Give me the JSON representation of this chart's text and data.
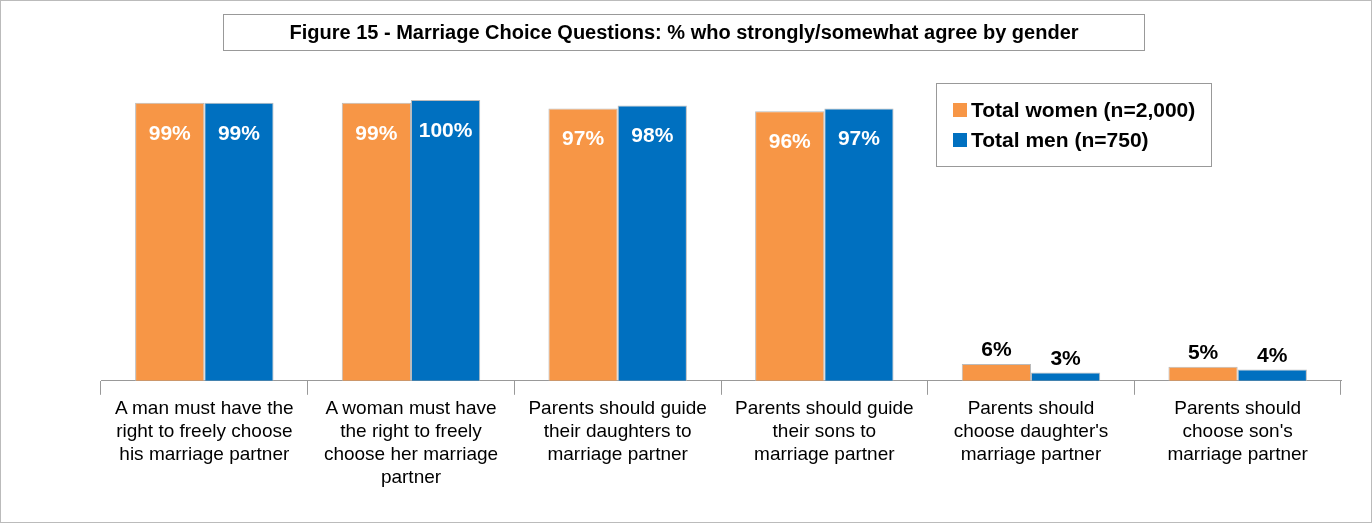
{
  "chart_data": {
    "type": "bar",
    "title": "Figure 15 - Marriage Choice Questions: % who strongly/somewhat agree by gender",
    "categories": [
      "A man must have the right to freely choose his marriage partner",
      "A woman must have the right to freely choose her marriage partner",
      "Parents should guide their daughters to marriage partner",
      "Parents should guide their sons to marriage partner",
      "Parents should choose daughter's marriage partner",
      "Parents should choose son's marriage partner"
    ],
    "series": [
      {
        "name": "Total women (n=2,000)",
        "color": "#f79646",
        "values": [
          99,
          99,
          97,
          96,
          6,
          5
        ],
        "value_labels": [
          "99%",
          "99%",
          "97%",
          "96%",
          "6%",
          "5%"
        ]
      },
      {
        "name": "Total men (n=750)",
        "color": "#0070c0",
        "values": [
          99,
          100,
          98,
          97,
          3,
          4
        ],
        "value_labels": [
          "99%",
          "100%",
          "98%",
          "97%",
          "3%",
          "4%"
        ]
      }
    ],
    "legend": "top right",
    "grid": false,
    "tick_labels": "x"
  }
}
